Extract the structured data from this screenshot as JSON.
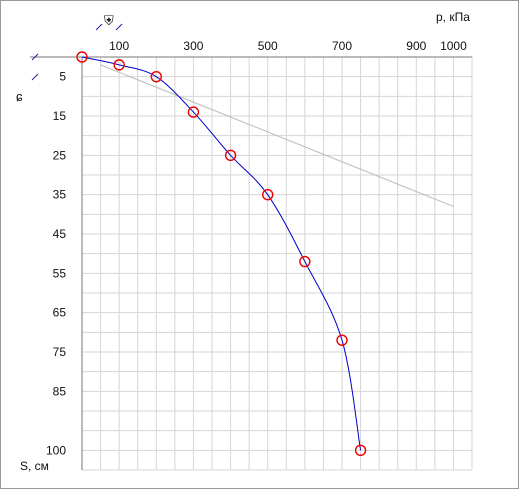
{
  "chart_data": {
    "type": "line",
    "xlabel": "p, кПа",
    "ylabel": "S, см",
    "x_tick_labels": [
      "100",
      "300",
      "500",
      "700",
      "900",
      "1000"
    ],
    "x_ticks": [
      100,
      300,
      500,
      700,
      900,
      1000
    ],
    "y_tick_labels": [
      "5",
      "15",
      "25",
      "35",
      "45",
      "55",
      "65",
      "75",
      "85",
      "100"
    ],
    "y_ticks": [
      5,
      15,
      25,
      35,
      45,
      55,
      65,
      75,
      85,
      100
    ],
    "xlim": [
      0,
      1050
    ],
    "ylim": [
      0,
      105
    ],
    "grid": true,
    "series": [
      {
        "color": "#0000cc",
        "marker_color": "#ee0000",
        "x": [
          0,
          100,
          200,
          300,
          400,
          500,
          600,
          700,
          750
        ],
        "y": [
          0,
          2,
          5,
          14,
          25,
          35,
          52,
          72,
          100
        ]
      }
    ],
    "reference_line": {
      "color": "#bbbbbb",
      "x": [
        50,
        1000
      ],
      "y": [
        2,
        38
      ]
    }
  }
}
